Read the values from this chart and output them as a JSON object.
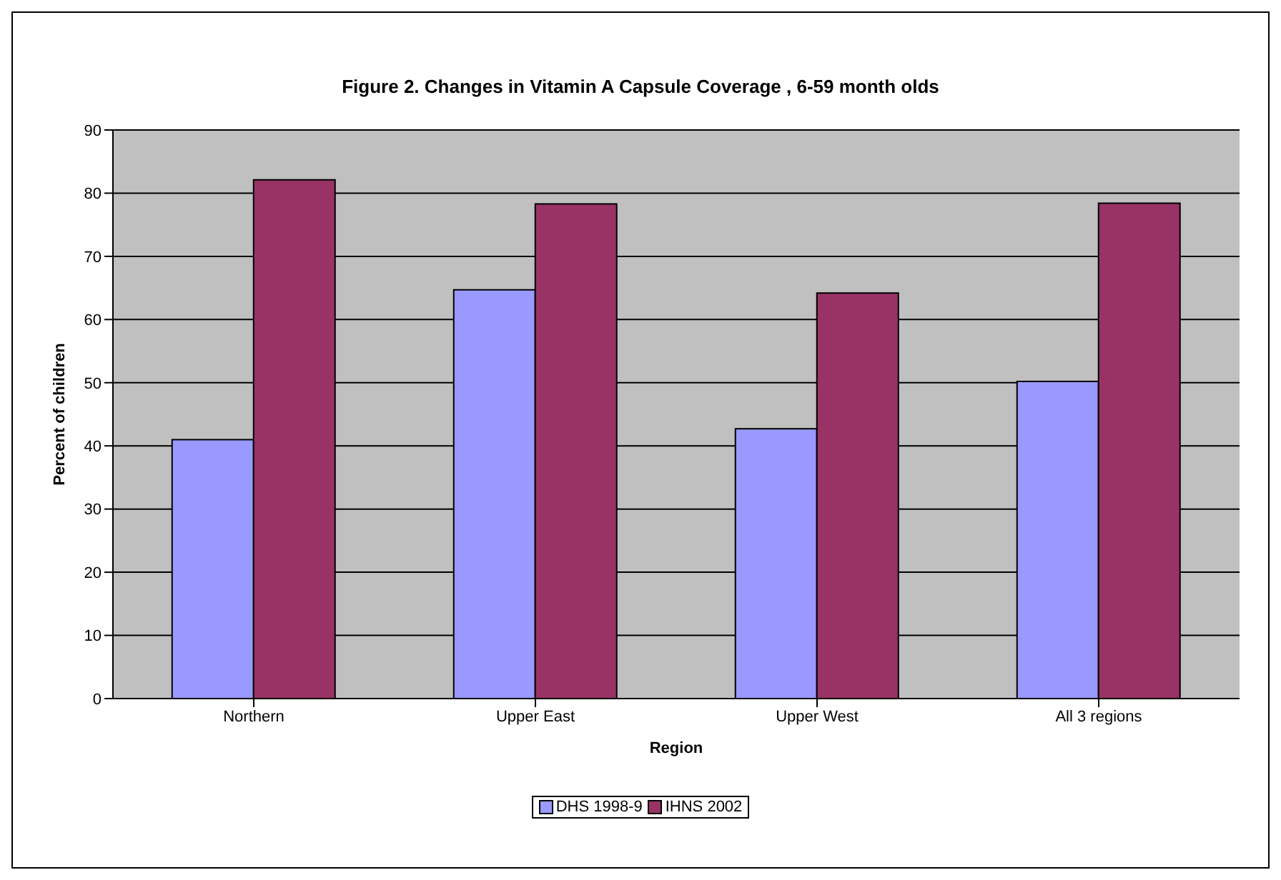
{
  "chart_data": {
    "type": "bar",
    "title": "Figure 2.  Changes in Vitamin A Capsule Coverage , 6-59 month olds",
    "xlabel": "Region",
    "ylabel": "Percent of children",
    "categories": [
      "Northern",
      "Upper East",
      "Upper West",
      "All 3 regions"
    ],
    "series": [
      {
        "name": "DHS 1998-9",
        "color": "#9999ff",
        "values": [
          41.0,
          64.7,
          42.7,
          50.2
        ]
      },
      {
        "name": "IHNS 2002",
        "color": "#993366",
        "values": [
          82.1,
          78.3,
          64.2,
          78.4
        ]
      }
    ],
    "ylim": [
      0,
      90
    ],
    "yticks": [
      0,
      10,
      20,
      30,
      40,
      50,
      60,
      70,
      80,
      90
    ],
    "grid": "y",
    "legend": "bottom"
  }
}
